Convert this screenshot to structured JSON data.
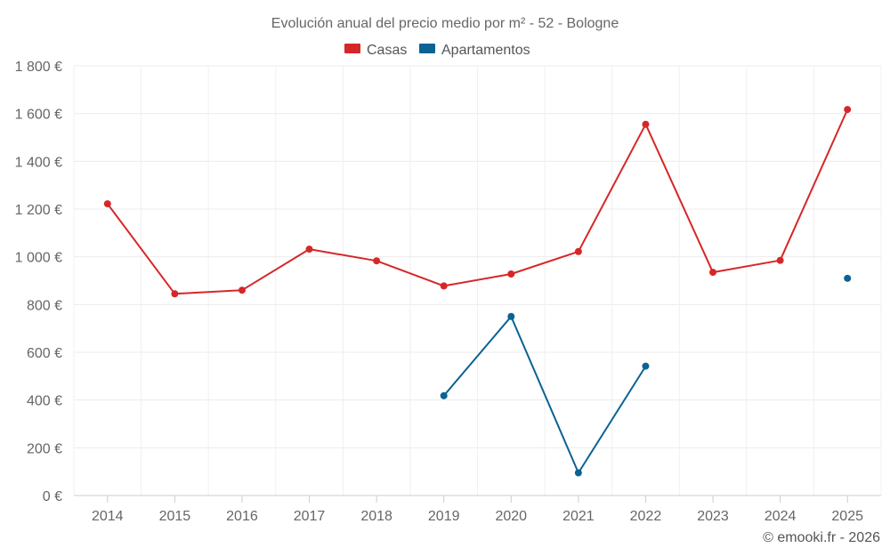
{
  "chart_data": {
    "type": "line",
    "title": "Evolución anual del precio medio por m² - 52 - Bologne",
    "xlabel": "",
    "ylabel": "",
    "categories": [
      "2014",
      "2015",
      "2016",
      "2017",
      "2018",
      "2019",
      "2020",
      "2021",
      "2022",
      "2023",
      "2024",
      "2025"
    ],
    "ylim": [
      0,
      1800
    ],
    "yticks": [
      0,
      200,
      400,
      600,
      800,
      1000,
      1200,
      1400,
      1600,
      1800
    ],
    "ytick_labels": [
      "0 €",
      "200 €",
      "400 €",
      "600 €",
      "800 €",
      "1 000 €",
      "1 200 €",
      "1 400 €",
      "1 600 €",
      "1 800 €"
    ],
    "grid": true,
    "legend": "top-center",
    "series": [
      {
        "name": "Casas",
        "color": "#d62728",
        "values": [
          1222,
          845,
          860,
          1032,
          983,
          878,
          928,
          1022,
          1555,
          935,
          985,
          1617
        ]
      },
      {
        "name": "Apartamentos",
        "color": "#0b6393",
        "values": [
          null,
          null,
          null,
          null,
          null,
          418,
          750,
          95,
          542,
          null,
          null,
          910
        ]
      }
    ]
  },
  "credit": "© emooki.fr - 2026"
}
